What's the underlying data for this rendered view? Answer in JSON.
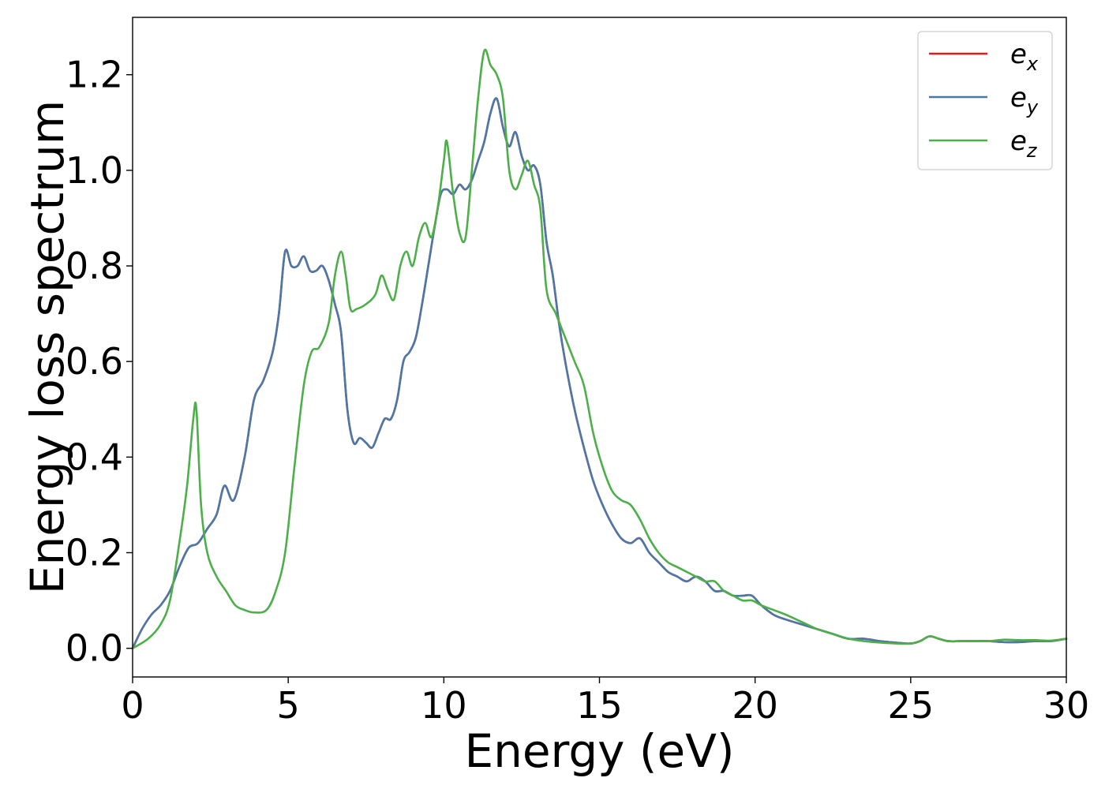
{
  "chart_data": {
    "type": "line",
    "xlabel": "Energy (eV)",
    "ylabel": "Energy loss spectrum",
    "xlim": [
      0,
      30
    ],
    "ylim": [
      -0.06,
      1.32
    ],
    "xticks": [
      "0",
      "5",
      "10",
      "15",
      "20",
      "25",
      "30"
    ],
    "yticks": [
      "0.0",
      "0.2",
      "0.4",
      "0.6",
      "0.8",
      "1.0",
      "1.2"
    ],
    "grid": false,
    "legend_position": "top-right",
    "series": [
      {
        "name": "e_x",
        "legend_base": "e",
        "legend_sub": "x",
        "color": "#e41a1c",
        "x": [
          0,
          0.3,
          0.6,
          0.9,
          1.2,
          1.5,
          1.8,
          2.1,
          2.4,
          2.7,
          2.95,
          3.25,
          3.6,
          3.9,
          4.2,
          4.5,
          4.7,
          4.9,
          5.1,
          5.3,
          5.5,
          5.7,
          5.9,
          6.1,
          6.3,
          6.5,
          6.7,
          6.9,
          7.1,
          7.3,
          7.5,
          7.7,
          7.9,
          8.1,
          8.3,
          8.5,
          8.7,
          8.9,
          9.1,
          9.3,
          9.5,
          9.7,
          9.9,
          10.1,
          10.3,
          10.5,
          10.7,
          10.9,
          11.1,
          11.3,
          11.5,
          11.7,
          11.9,
          12.1,
          12.3,
          12.5,
          12.7,
          12.9,
          13.1,
          13.3,
          13.5,
          13.7,
          13.9,
          14.2,
          14.5,
          14.8,
          15.1,
          15.4,
          15.7,
          16.0,
          16.3,
          16.6,
          16.9,
          17.2,
          17.5,
          17.8,
          18.1,
          18.4,
          18.7,
          19.0,
          19.3,
          19.6,
          19.9,
          20.2,
          20.6,
          21.0,
          21.5,
          22.0,
          22.5,
          23.0,
          23.5,
          24.0,
          24.5,
          25.0,
          25.3,
          25.6,
          25.9,
          26.2,
          26.6,
          27.0,
          27.5,
          28.0,
          28.5,
          29.0,
          29.5,
          30.0
        ],
        "y": [
          0.0,
          0.04,
          0.07,
          0.09,
          0.12,
          0.17,
          0.21,
          0.22,
          0.25,
          0.28,
          0.34,
          0.31,
          0.4,
          0.52,
          0.56,
          0.62,
          0.7,
          0.83,
          0.8,
          0.8,
          0.82,
          0.79,
          0.79,
          0.8,
          0.77,
          0.72,
          0.66,
          0.5,
          0.43,
          0.44,
          0.43,
          0.42,
          0.45,
          0.48,
          0.48,
          0.52,
          0.6,
          0.62,
          0.65,
          0.72,
          0.8,
          0.88,
          0.95,
          0.96,
          0.95,
          0.97,
          0.96,
          0.98,
          1.02,
          1.06,
          1.12,
          1.15,
          1.09,
          1.05,
          1.08,
          1.03,
          1.0,
          1.01,
          0.97,
          0.85,
          0.78,
          0.68,
          0.6,
          0.5,
          0.42,
          0.35,
          0.3,
          0.26,
          0.23,
          0.22,
          0.23,
          0.2,
          0.18,
          0.16,
          0.15,
          0.14,
          0.15,
          0.14,
          0.12,
          0.12,
          0.11,
          0.11,
          0.11,
          0.09,
          0.07,
          0.06,
          0.05,
          0.04,
          0.03,
          0.02,
          0.02,
          0.015,
          0.012,
          0.01,
          0.015,
          0.025,
          0.02,
          0.015,
          0.015,
          0.015,
          0.015,
          0.013,
          0.013,
          0.015,
          0.015,
          0.02
        ]
      },
      {
        "name": "e_y",
        "legend_base": "e",
        "legend_sub": "y",
        "color": "#4a78a8",
        "x": [
          0,
          0.3,
          0.6,
          0.9,
          1.2,
          1.5,
          1.8,
          2.1,
          2.4,
          2.7,
          2.95,
          3.25,
          3.6,
          3.9,
          4.2,
          4.5,
          4.7,
          4.9,
          5.1,
          5.3,
          5.5,
          5.7,
          5.9,
          6.1,
          6.3,
          6.5,
          6.7,
          6.9,
          7.1,
          7.3,
          7.5,
          7.7,
          7.9,
          8.1,
          8.3,
          8.5,
          8.7,
          8.9,
          9.1,
          9.3,
          9.5,
          9.7,
          9.9,
          10.1,
          10.3,
          10.5,
          10.7,
          10.9,
          11.1,
          11.3,
          11.5,
          11.7,
          11.9,
          12.1,
          12.3,
          12.5,
          12.7,
          12.9,
          13.1,
          13.3,
          13.5,
          13.7,
          13.9,
          14.2,
          14.5,
          14.8,
          15.1,
          15.4,
          15.7,
          16.0,
          16.3,
          16.6,
          16.9,
          17.2,
          17.5,
          17.8,
          18.1,
          18.4,
          18.7,
          19.0,
          19.3,
          19.6,
          19.9,
          20.2,
          20.6,
          21.0,
          21.5,
          22.0,
          22.5,
          23.0,
          23.5,
          24.0,
          24.5,
          25.0,
          25.3,
          25.6,
          25.9,
          26.2,
          26.6,
          27.0,
          27.5,
          28.0,
          28.5,
          29.0,
          29.5,
          30.0
        ],
        "y": [
          0.0,
          0.04,
          0.07,
          0.09,
          0.12,
          0.17,
          0.21,
          0.22,
          0.25,
          0.28,
          0.34,
          0.31,
          0.4,
          0.52,
          0.56,
          0.62,
          0.7,
          0.83,
          0.8,
          0.8,
          0.82,
          0.79,
          0.79,
          0.8,
          0.77,
          0.72,
          0.66,
          0.5,
          0.43,
          0.44,
          0.43,
          0.42,
          0.45,
          0.48,
          0.48,
          0.52,
          0.6,
          0.62,
          0.65,
          0.72,
          0.8,
          0.88,
          0.95,
          0.96,
          0.95,
          0.97,
          0.96,
          0.98,
          1.02,
          1.06,
          1.12,
          1.15,
          1.09,
          1.05,
          1.08,
          1.03,
          1.0,
          1.01,
          0.97,
          0.85,
          0.78,
          0.68,
          0.6,
          0.5,
          0.42,
          0.35,
          0.3,
          0.26,
          0.23,
          0.22,
          0.23,
          0.2,
          0.18,
          0.16,
          0.15,
          0.14,
          0.15,
          0.14,
          0.12,
          0.12,
          0.11,
          0.11,
          0.11,
          0.09,
          0.07,
          0.06,
          0.05,
          0.04,
          0.03,
          0.02,
          0.02,
          0.015,
          0.012,
          0.01,
          0.015,
          0.025,
          0.02,
          0.015,
          0.015,
          0.015,
          0.015,
          0.013,
          0.013,
          0.015,
          0.015,
          0.02
        ]
      },
      {
        "name": "e_z",
        "legend_base": "e",
        "legend_sub": "z",
        "color": "#4daf4a",
        "x": [
          0,
          0.5,
          0.9,
          1.2,
          1.5,
          1.75,
          1.95,
          2.05,
          2.2,
          2.4,
          2.7,
          3.0,
          3.3,
          3.6,
          3.9,
          4.3,
          4.6,
          4.9,
          5.2,
          5.5,
          5.75,
          6.0,
          6.3,
          6.5,
          6.7,
          6.85,
          7.0,
          7.2,
          7.5,
          7.8,
          8.0,
          8.2,
          8.4,
          8.6,
          8.8,
          9.0,
          9.2,
          9.4,
          9.6,
          9.8,
          10.0,
          10.1,
          10.3,
          10.5,
          10.7,
          10.9,
          11.1,
          11.3,
          11.5,
          11.7,
          11.9,
          12.1,
          12.3,
          12.5,
          12.7,
          12.9,
          13.1,
          13.3,
          13.6,
          13.9,
          14.2,
          14.5,
          14.8,
          15.1,
          15.4,
          15.7,
          16.0,
          16.3,
          16.6,
          16.9,
          17.2,
          17.5,
          17.8,
          18.1,
          18.4,
          18.7,
          19.0,
          19.3,
          19.6,
          19.9,
          20.2,
          20.6,
          21.0,
          21.5,
          22.0,
          22.5,
          23.0,
          23.5,
          24.0,
          24.5,
          25.0,
          25.3,
          25.6,
          25.9,
          26.2,
          26.6,
          27.0,
          27.5,
          28.0,
          28.5,
          29.0,
          29.5,
          30.0
        ],
        "y": [
          0.0,
          0.02,
          0.05,
          0.1,
          0.22,
          0.34,
          0.48,
          0.5,
          0.3,
          0.2,
          0.15,
          0.12,
          0.09,
          0.08,
          0.075,
          0.08,
          0.12,
          0.2,
          0.38,
          0.55,
          0.62,
          0.63,
          0.68,
          0.78,
          0.83,
          0.78,
          0.71,
          0.71,
          0.72,
          0.74,
          0.78,
          0.75,
          0.73,
          0.8,
          0.83,
          0.8,
          0.86,
          0.89,
          0.86,
          0.92,
          1.02,
          1.06,
          0.95,
          0.87,
          0.86,
          1.0,
          1.15,
          1.25,
          1.22,
          1.2,
          1.15,
          1.0,
          0.96,
          0.99,
          1.02,
          0.97,
          0.92,
          0.75,
          0.7,
          0.65,
          0.6,
          0.55,
          0.45,
          0.38,
          0.33,
          0.31,
          0.3,
          0.27,
          0.23,
          0.2,
          0.18,
          0.17,
          0.16,
          0.15,
          0.14,
          0.14,
          0.12,
          0.11,
          0.1,
          0.1,
          0.09,
          0.08,
          0.07,
          0.055,
          0.04,
          0.03,
          0.02,
          0.015,
          0.012,
          0.01,
          0.01,
          0.015,
          0.025,
          0.02,
          0.015,
          0.015,
          0.015,
          0.015,
          0.018,
          0.017,
          0.017,
          0.016,
          0.02
        ]
      }
    ]
  }
}
